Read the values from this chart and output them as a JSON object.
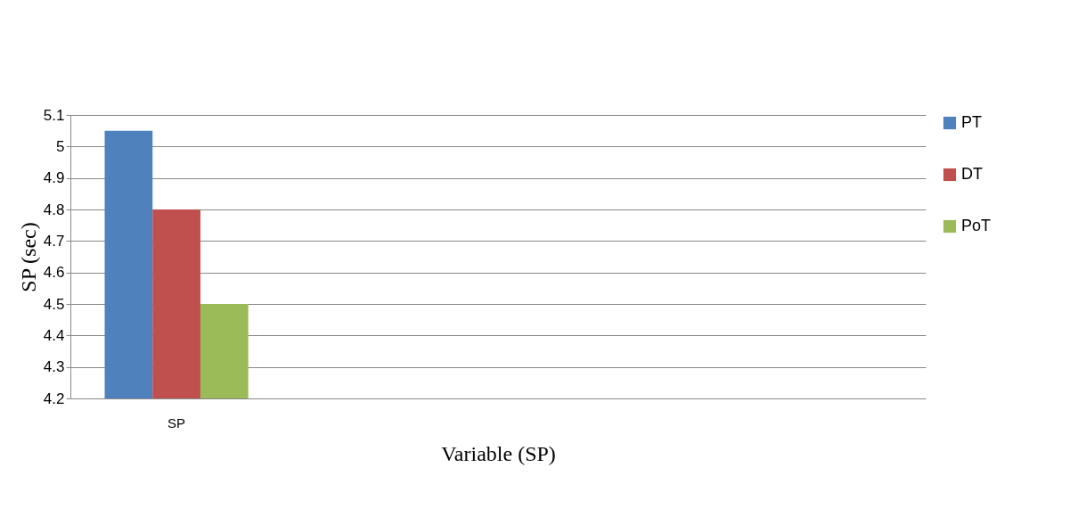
{
  "chart_data": {
    "type": "bar",
    "ylabel": "SP (sec)",
    "xlabel": "Variable (SP)",
    "categories": [
      "SP",
      null,
      null,
      null
    ],
    "series": [
      {
        "name": "PT",
        "color": "#4f81bd",
        "values": [
          5.05,
          null,
          null,
          null
        ]
      },
      {
        "name": "DT",
        "color": "#c0504d",
        "values": [
          4.8,
          null,
          null,
          null
        ]
      },
      {
        "name": "PoT",
        "color": "#9bbb59",
        "values": [
          4.5,
          null,
          null,
          null
        ]
      }
    ],
    "ylim": [
      4.2,
      5.1
    ],
    "yticks": [
      4.2,
      4.3,
      4.4,
      4.5,
      4.6,
      4.7,
      4.8,
      4.9,
      5,
      5.1
    ],
    "grid": "y",
    "legend": "right"
  }
}
